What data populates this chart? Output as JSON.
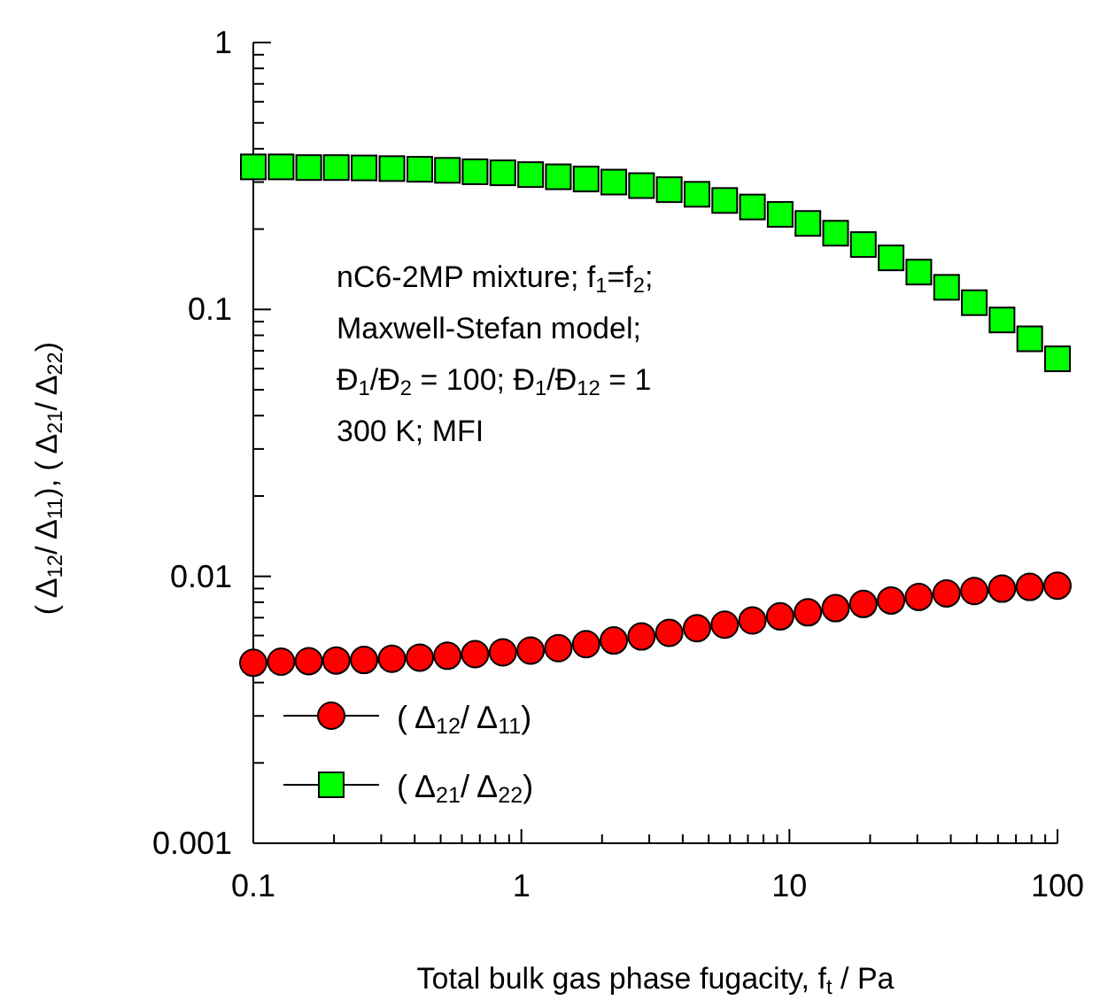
{
  "chart_data": {
    "type": "scatter",
    "xlabel": "Total bulk gas phase fugacity, f$_{t}$ / Pa",
    "ylabel": "( Δ$_{12}$/ Δ$_{11}$), ( Δ$_{21}$/ Δ$_{22}$)",
    "annotations": [
      "nC6-2MP mixture; f$_{1}$=f$_{2}$;",
      "Maxwell-Stefan model;",
      "Đ$_{1}$/Đ$_{2}$ = 100; Đ$_{1}$/Đ$_{12}$ = 1",
      "300 K; MFI"
    ],
    "x": [
      0.1,
      0.127,
      0.161,
      0.204,
      0.259,
      0.329,
      0.418,
      0.53,
      0.672,
      0.853,
      1.083,
      1.374,
      1.744,
      2.212,
      2.807,
      3.562,
      4.52,
      5.736,
      7.279,
      9.237,
      11.72,
      14.87,
      18.87,
      23.95,
      30.39,
      38.57,
      48.94,
      62.11,
      78.8,
      100
    ],
    "series": [
      {
        "name": "( Δ$_{12}$/ Δ$_{11}$)",
        "color": "#ff0000",
        "marker": "circle",
        "values": [
          0.00474,
          0.00479,
          0.00481,
          0.00484,
          0.00486,
          0.00491,
          0.00496,
          0.00504,
          0.00511,
          0.00519,
          0.00527,
          0.00538,
          0.00557,
          0.00575,
          0.00595,
          0.00614,
          0.00639,
          0.00659,
          0.00683,
          0.00708,
          0.00733,
          0.0076,
          0.00788,
          0.00812,
          0.00837,
          0.00863,
          0.00881,
          0.00899,
          0.00913,
          0.00922
        ]
      },
      {
        "name": "( Δ$_{21}$/ Δ$_{22}$)",
        "color": "#00ff00",
        "marker": "square",
        "values": [
          0.342,
          0.342,
          0.34,
          0.34,
          0.339,
          0.337,
          0.335,
          0.332,
          0.328,
          0.325,
          0.32,
          0.314,
          0.308,
          0.3,
          0.291,
          0.281,
          0.27,
          0.256,
          0.242,
          0.227,
          0.21,
          0.193,
          0.175,
          0.156,
          0.138,
          0.121,
          0.106,
          0.0913,
          0.0776,
          0.0653
        ]
      }
    ],
    "log": "xy",
    "xlim": [
      0.1,
      100
    ],
    "ylim": [
      0.001,
      1
    ],
    "xticks": [
      0.1,
      {
        "value": 0.2,
        "label": null
      },
      {
        "value": 0.3,
        "label": null
      },
      {
        "value": 0.4,
        "label": null
      },
      {
        "value": 0.5,
        "label": null
      },
      {
        "value": 0.6,
        "label": null
      },
      {
        "value": 0.7,
        "label": null
      },
      {
        "value": 0.8,
        "label": null
      },
      {
        "value": 0.9,
        "label": null
      },
      1,
      {
        "value": 2,
        "label": null
      },
      {
        "value": 3,
        "label": null
      },
      {
        "value": 4,
        "label": null
      },
      {
        "value": 5,
        "label": null
      },
      {
        "value": 6,
        "label": null
      },
      {
        "value": 7,
        "label": null
      },
      {
        "value": 8,
        "label": null
      },
      {
        "value": 9,
        "label": null
      },
      10,
      {
        "value": 20,
        "label": null
      },
      {
        "value": 30,
        "label": null
      },
      {
        "value": 40,
        "label": null
      },
      {
        "value": 50,
        "label": null
      },
      {
        "value": 60,
        "label": null
      },
      {
        "value": 70,
        "label": null
      },
      {
        "value": 80,
        "label": null
      },
      {
        "value": 90,
        "label": null
      },
      100
    ],
    "yticks": [
      0.001,
      {
        "value": 0.002,
        "label": null
      },
      {
        "value": 0.003,
        "label": null
      },
      {
        "value": 0.004,
        "label": null
      },
      {
        "value": 0.005,
        "label": null
      },
      {
        "value": 0.006,
        "label": null
      },
      {
        "value": 0.007,
        "label": null
      },
      {
        "value": 0.008,
        "label": null
      },
      {
        "value": 0.009,
        "label": null
      },
      0.01,
      {
        "value": 0.02,
        "label": null
      },
      {
        "value": 0.03,
        "label": null
      },
      {
        "value": 0.04,
        "label": null
      },
      {
        "value": 0.05,
        "label": null
      },
      {
        "value": 0.06,
        "label": null
      },
      {
        "value": 0.07,
        "label": null
      },
      {
        "value": 0.08,
        "label": null
      },
      {
        "value": 0.09,
        "label": null
      },
      0.1,
      {
        "value": 0.2,
        "label": null
      },
      {
        "value": 0.3,
        "label": null
      },
      {
        "value": 0.4,
        "label": null
      },
      {
        "value": 0.5,
        "label": null
      },
      {
        "value": 0.6,
        "label": null
      },
      {
        "value": 0.7,
        "label": null
      },
      {
        "value": 0.8,
        "label": null
      },
      {
        "value": 0.9,
        "label": null
      },
      1
    ],
    "legend": "bottom left",
    "grid": false
  }
}
